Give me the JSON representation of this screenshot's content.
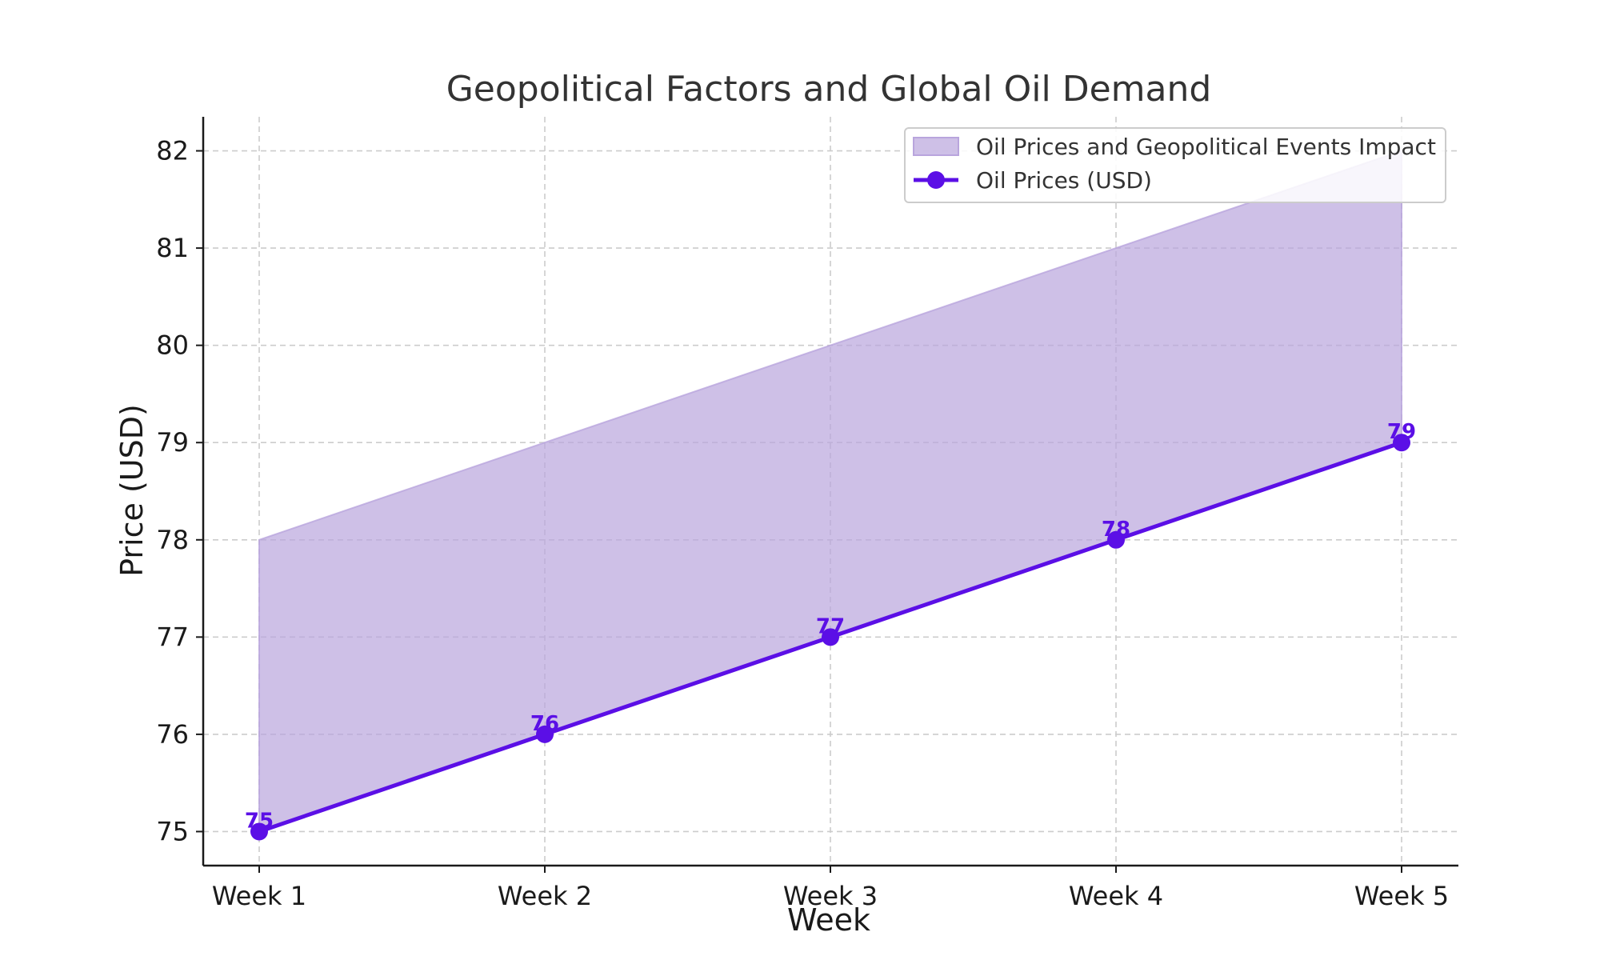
{
  "chart_data": {
    "type": "area",
    "title": "Geopolitical Factors and Global Oil Demand",
    "xlabel": "Week",
    "ylabel": "Price (USD)",
    "categories": [
      "Week 1",
      "Week 2",
      "Week 3",
      "Week 4",
      "Week 5"
    ],
    "ylim": [
      74.65,
      82.35
    ],
    "yticks": [
      75,
      76,
      77,
      78,
      79,
      80,
      81,
      82
    ],
    "grid": true,
    "legend_position": "top-right",
    "series": [
      {
        "name": "Oil Prices (USD)",
        "kind": "line",
        "marker": "circle",
        "values": [
          75,
          76,
          77,
          78,
          79
        ],
        "data_labels": [
          "75",
          "76",
          "77",
          "78",
          "79"
        ],
        "color": "#5b0fe6"
      },
      {
        "name": "Oil Prices and Geopolitical Events Impact",
        "kind": "band",
        "lower": [
          75,
          76,
          77,
          78,
          79
        ],
        "upper": [
          78,
          79,
          80,
          81,
          82
        ],
        "color": "#b9a5dd"
      }
    ]
  }
}
